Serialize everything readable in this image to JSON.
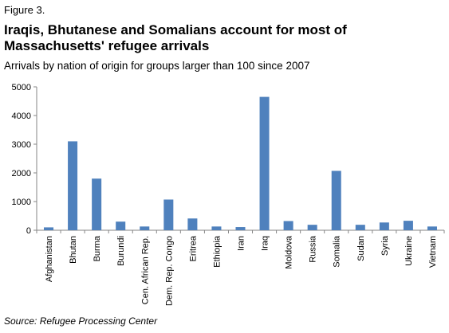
{
  "figure_label": "Figure 3.",
  "source": "Source: Refugee Processing Center",
  "chart_data": {
    "type": "bar",
    "title": "Iraqis, Bhutanese and Somalians account for most of Massachusetts' refugee arrivals",
    "subtitle": "Arrivals by nation of origin for groups larger than 100 since 2007",
    "xlabel": "",
    "ylabel": "",
    "categories": [
      "Afghanistan",
      "Bhutan",
      "Burma",
      "Burundi",
      "Cen. African Rep.",
      "Dem. Rep. Congo",
      "Eritrea",
      "Ethiopia",
      "Iran",
      "Iraq",
      "Moldova",
      "Russia",
      "Somalia",
      "Sudan",
      "Syria",
      "Ukraine",
      "Vietnam"
    ],
    "values": [
      100,
      3100,
      1800,
      300,
      130,
      1070,
      410,
      130,
      110,
      4650,
      320,
      190,
      2070,
      190,
      270,
      330,
      130
    ],
    "ylim": [
      0,
      5000
    ],
    "yticks": [
      0,
      1000,
      2000,
      3000,
      4000,
      5000
    ],
    "grid": false,
    "legend": "none",
    "bar_color": "#4f81bd"
  }
}
